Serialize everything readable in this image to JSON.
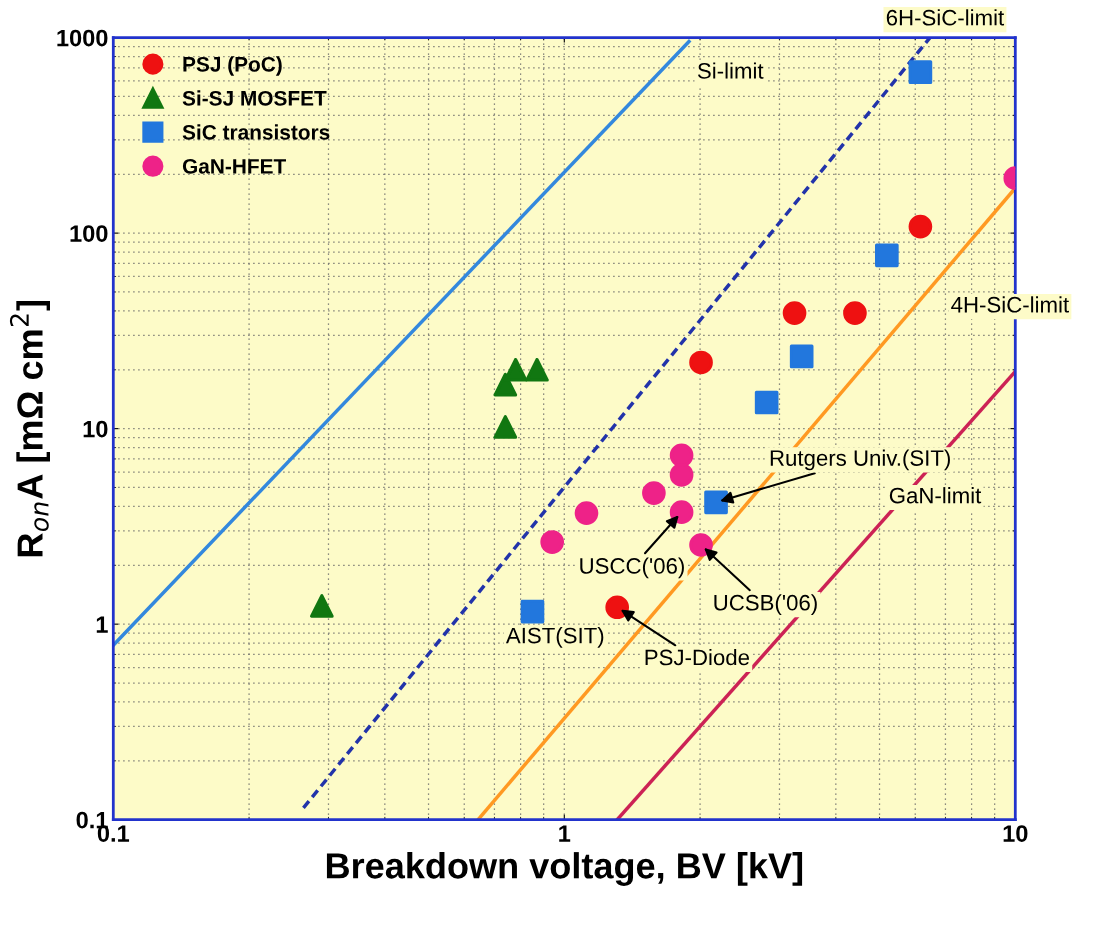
{
  "chart_data": {
    "type": "scatter",
    "xlabel": "Breakdown voltage, BV [kV]",
    "ylabel": "R$_{on}$A [mΩ cm$^{2}$]",
    "log": "xy",
    "xlim": [
      0.1,
      10
    ],
    "ylim": [
      0.1,
      1000
    ],
    "xticks": [
      0.1,
      1,
      10
    ],
    "yticks": [
      0.1,
      1,
      10,
      100,
      1000
    ],
    "grid": true,
    "legend": "top left",
    "series": [
      {
        "name": "PSJ (PoC)",
        "marker": "circle",
        "color": "#ee1111",
        "x": [
          1.31,
          2.01,
          3.24,
          4.41,
          6.16
        ],
        "values": [
          1.22,
          21.8,
          39,
          39,
          108
        ]
      },
      {
        "name": "Si-SJ MOSFET",
        "marker": "triangle",
        "color": "#117711",
        "x": [
          0.29,
          0.74,
          0.74,
          0.78,
          0.87
        ],
        "values": [
          1.24,
          10.2,
          16.8,
          20,
          20
        ]
      },
      {
        "name": "SiC transistors",
        "marker": "square",
        "color": "#2277dd",
        "x": [
          6.16,
          5.19,
          3.36,
          2.81,
          2.17,
          0.85
        ],
        "values": [
          666,
          77,
          23.4,
          13.6,
          4.2,
          1.16
        ]
      },
      {
        "name": "GaN-HFET",
        "marker": "circle",
        "color": "#ee2288",
        "x": [
          10,
          0.94,
          1.12,
          1.58,
          1.82,
          1.82,
          1.82,
          2.01
        ],
        "values": [
          191,
          2.63,
          3.7,
          4.68,
          7.3,
          5.8,
          3.74,
          2.54
        ]
      },
      {
        "type": "line",
        "line_style": "solid",
        "color": "#3388dd",
        "x": [
          0.1,
          1.89
        ],
        "values": [
          0.78,
          955
        ]
      },
      {
        "type": "line",
        "line_style": "dashed",
        "color": "#2233aa",
        "x": [
          0.264,
          6.47
        ],
        "values": [
          0.115,
          1000
        ]
      },
      {
        "type": "line",
        "line_style": "solid",
        "color": "#ff9922",
        "x": [
          0.644,
          10
        ],
        "values": [
          0.1,
          170
        ]
      },
      {
        "type": "line",
        "line_style": "solid",
        "color": "#cc2255",
        "x": [
          1.31,
          10
        ],
        "values": [
          0.1,
          19.6
        ]
      }
    ],
    "annotations": [
      "Si-limit",
      "6H-SiC-limit",
      "4H-SiC-limit",
      "GaN-limit",
      {
        "text": "Rutgers Univ.(SIT)",
        "x": 2.17,
        "y": 4.2
      },
      "AIST(SIT)",
      {
        "text": "USCC('06)",
        "x": 1.82,
        "y": 3.74
      },
      {
        "text": "UCSB('06)",
        "x": 2.01,
        "y": 2.54
      },
      {
        "text": "PSJ-Diode",
        "x": 1.31,
        "y": 1.22
      }
    ]
  }
}
